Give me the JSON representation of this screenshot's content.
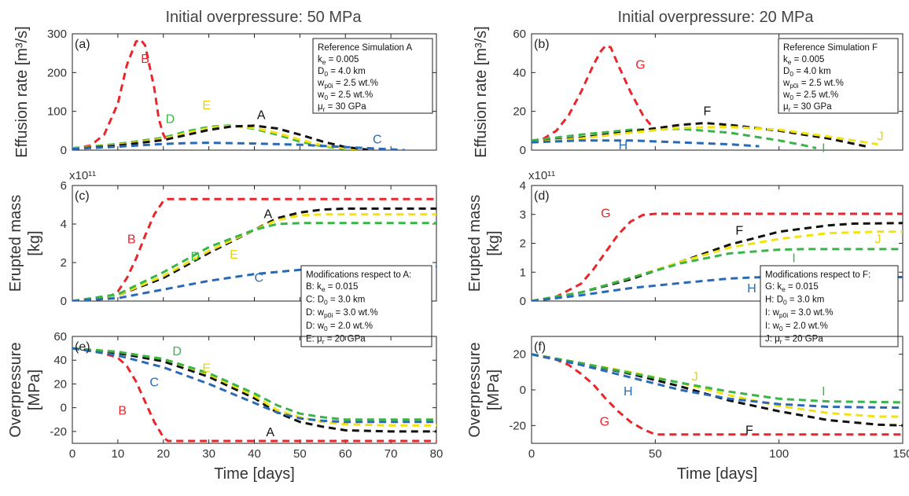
{
  "colors": {
    "A": "#111111",
    "B": "#e8262b",
    "C": "#2a6ab4",
    "D": "#38b449",
    "E": "#f2e20e",
    "F": "#111111",
    "G": "#e8262b",
    "H": "#2a6ab4",
    "I": "#38b449",
    "J": "#f2e20e"
  },
  "chart_data": [
    {
      "id": "a",
      "type": "line",
      "panel_label": "(a)",
      "column_title": "Initial overpressure: 50 MPa",
      "ylabel": "Effusion rate [m³/s]",
      "xlim": [
        0,
        80
      ],
      "ylim": [
        0,
        300
      ],
      "yticks": [
        "0",
        "100",
        "200",
        "300"
      ],
      "series": [
        {
          "name": "B",
          "x": [
            0,
            4,
            7,
            10,
            12,
            14,
            15,
            16,
            18,
            19,
            20,
            21
          ],
          "y": [
            3,
            12,
            40,
            120,
            220,
            280,
            285,
            270,
            160,
            80,
            40,
            20
          ]
        },
        {
          "name": "D",
          "x": [
            0,
            10,
            20,
            25,
            30,
            35,
            40,
            45,
            50,
            55,
            60,
            62
          ],
          "y": [
            5,
            16,
            32,
            48,
            60,
            64,
            55,
            40,
            22,
            10,
            3,
            1
          ]
        },
        {
          "name": "E",
          "x": [
            0,
            10,
            20,
            25,
            30,
            35,
            40,
            45,
            50,
            55,
            60,
            63
          ],
          "y": [
            4,
            14,
            29,
            44,
            57,
            63,
            57,
            44,
            27,
            12,
            4,
            1
          ]
        },
        {
          "name": "A",
          "x": [
            0,
            10,
            20,
            25,
            30,
            35,
            40,
            45,
            50,
            55,
            60,
            65
          ],
          "y": [
            3,
            12,
            26,
            39,
            52,
            61,
            63,
            56,
            40,
            22,
            8,
            1
          ]
        },
        {
          "name": "C",
          "x": [
            0,
            10,
            20,
            25,
            30,
            40,
            50,
            55,
            60,
            65,
            70,
            73
          ],
          "y": [
            3,
            9,
            16,
            18,
            19,
            17,
            14,
            11,
            8,
            5,
            2,
            0
          ]
        }
      ],
      "annotations": [
        {
          "text": "B",
          "x": 16,
          "y": 225
        },
        {
          "text": "D",
          "x": 21.5,
          "y": 70
        },
        {
          "text": "E",
          "x": 29.5,
          "y": 105
        },
        {
          "text": "A",
          "x": 41.5,
          "y": 80
        },
        {
          "text": "C",
          "x": 67,
          "y": 17
        }
      ],
      "legend_box": {
        "title": "Reference Simulation A",
        "lines": [
          "k_e = 0.005",
          "D_0 = 4.0 km",
          "w_p0i = 2.5 wt.%",
          "w_0 = 2.5 wt.%",
          "μ_r = 30 GPa"
        ]
      }
    },
    {
      "id": "b",
      "type": "line",
      "panel_label": "(b)",
      "column_title": "Initial overpressure: 20 MPa",
      "ylabel": "Effusion rate [m³/s]",
      "xlim": [
        0,
        150
      ],
      "ylim": [
        0,
        60
      ],
      "yticks": [
        "0",
        "20",
        "40",
        "60"
      ],
      "series": [
        {
          "name": "G",
          "x": [
            0,
            5,
            10,
            15,
            20,
            25,
            28,
            30,
            32,
            35,
            40,
            45,
            50
          ],
          "y": [
            4,
            6,
            10,
            18,
            30,
            44,
            51,
            54,
            53,
            44,
            30,
            18,
            10
          ]
        },
        {
          "name": "I",
          "x": [
            0,
            20,
            40,
            60,
            80,
            100,
            110,
            115
          ],
          "y": [
            5,
            8,
            10.5,
            11,
            9,
            5,
            2.5,
            1
          ]
        },
        {
          "name": "F",
          "x": [
            0,
            20,
            40,
            60,
            70,
            80,
            100,
            120,
            135
          ],
          "y": [
            4,
            6.5,
            9.5,
            13,
            14,
            13,
            10,
            6,
            2
          ]
        },
        {
          "name": "J",
          "x": [
            0,
            20,
            40,
            60,
            80,
            100,
            120,
            140
          ],
          "y": [
            4,
            6,
            9,
            11.5,
            12,
            10.5,
            7,
            3
          ]
        },
        {
          "name": "H",
          "x": [
            0,
            20,
            40,
            60,
            80,
            92
          ],
          "y": [
            4,
            5,
            5,
            4,
            3,
            2
          ]
        }
      ],
      "annotations": [
        {
          "text": "G",
          "x": 44,
          "y": 42
        },
        {
          "text": "F",
          "x": 71,
          "y": 18
        },
        {
          "text": "J",
          "x": 141,
          "y": 5
        },
        {
          "text": "H",
          "x": 37,
          "y": 0.5
        },
        {
          "text": "I",
          "x": 118,
          "y": -1
        }
      ],
      "legend_box": {
        "title": "Reference Simulation F",
        "lines": [
          "k_e = 0.005",
          "D_0 = 4.0 km",
          "w_p0i = 2.5 wt.%",
          "w_0 = 2.5 wt.%",
          "μ_r = 30 GPa"
        ]
      }
    },
    {
      "id": "c",
      "type": "line",
      "panel_label": "(c)",
      "ylabel": "Erupted mass [kg]",
      "yscale": "x10¹¹",
      "xlim": [
        0,
        80
      ],
      "ylim": [
        0,
        6
      ],
      "yticks": [
        "0",
        "2",
        "4",
        "6"
      ],
      "series": [
        {
          "name": "B",
          "x": [
            0,
            5,
            8,
            10,
            12,
            14,
            16,
            18,
            20,
            21,
            80
          ],
          "y": [
            0,
            0.05,
            0.2,
            0.5,
            1.2,
            2.2,
            3.4,
            4.5,
            5.2,
            5.3,
            5.3
          ]
        },
        {
          "name": "A",
          "x": [
            0,
            10,
            20,
            30,
            40,
            45,
            50,
            55,
            60,
            80
          ],
          "y": [
            0,
            0.3,
            1.2,
            2.5,
            3.7,
            4.3,
            4.6,
            4.75,
            4.8,
            4.8
          ]
        },
        {
          "name": "E",
          "x": [
            0,
            10,
            20,
            30,
            40,
            45,
            50,
            55,
            60,
            80
          ],
          "y": [
            0,
            0.3,
            1.3,
            2.6,
            3.7,
            4.2,
            4.45,
            4.5,
            4.5,
            4.5
          ]
        },
        {
          "name": "D",
          "x": [
            0,
            10,
            20,
            30,
            40,
            45,
            50,
            55,
            80
          ],
          "y": [
            0,
            0.35,
            1.5,
            2.8,
            3.7,
            4.0,
            4.05,
            4.05,
            4.05
          ]
        },
        {
          "name": "C",
          "x": [
            0,
            10,
            20,
            30,
            40,
            50,
            60,
            70,
            80
          ],
          "y": [
            0,
            0.15,
            0.6,
            1.05,
            1.4,
            1.62,
            1.72,
            1.78,
            1.8
          ]
        }
      ],
      "annotations": [
        {
          "text": "B",
          "x": 13,
          "y": 3.0
        },
        {
          "text": "A",
          "x": 43,
          "y": 4.3
        },
        {
          "text": "D",
          "x": 27,
          "y": 2.1
        },
        {
          "text": "E",
          "x": 35.5,
          "y": 2.2
        },
        {
          "text": "C",
          "x": 41,
          "y": 1.0
        }
      ],
      "legend_box": {
        "title": "Modifications respect to A:",
        "lines": [
          "B: k_e = 0.015",
          "C: D_0 = 3.0 km",
          "D: w_p0i = 3.0 wt.%",
          "D: w_0 = 2.0 wt.%",
          "E: μ_r = 20 GPa"
        ]
      }
    },
    {
      "id": "d",
      "type": "line",
      "panel_label": "(d)",
      "ylabel": "Erupted mass [kg]",
      "yscale": "x10¹¹",
      "xlim": [
        0,
        150
      ],
      "ylim": [
        0,
        4
      ],
      "yticks": [
        "0",
        "1",
        "2",
        "3",
        "4"
      ],
      "series": [
        {
          "name": "G",
          "x": [
            0,
            10,
            20,
            25,
            30,
            35,
            40,
            45,
            50,
            150
          ],
          "y": [
            0,
            0.15,
            0.6,
            1.1,
            1.7,
            2.3,
            2.75,
            2.98,
            3.02,
            3.02
          ]
        },
        {
          "name": "F",
          "x": [
            0,
            20,
            40,
            60,
            80,
            100,
            120,
            130,
            150
          ],
          "y": [
            0,
            0.3,
            0.75,
            1.35,
            1.95,
            2.4,
            2.62,
            2.68,
            2.7
          ]
        },
        {
          "name": "J",
          "x": [
            0,
            20,
            40,
            60,
            80,
            100,
            120,
            140,
            150
          ],
          "y": [
            0,
            0.3,
            0.8,
            1.35,
            1.85,
            2.15,
            2.35,
            2.4,
            2.4
          ]
        },
        {
          "name": "I",
          "x": [
            0,
            20,
            40,
            60,
            80,
            100,
            110,
            120,
            150
          ],
          "y": [
            0,
            0.3,
            0.8,
            1.3,
            1.65,
            1.78,
            1.8,
            1.8,
            1.8
          ]
        },
        {
          "name": "H",
          "x": [
            0,
            20,
            40,
            60,
            80,
            90,
            100,
            150
          ],
          "y": [
            0,
            0.2,
            0.45,
            0.62,
            0.78,
            0.82,
            0.83,
            0.83
          ]
        }
      ],
      "annotations": [
        {
          "text": "G",
          "x": 30,
          "y": 2.9
        },
        {
          "text": "F",
          "x": 84,
          "y": 2.3
        },
        {
          "text": "J",
          "x": 140,
          "y": 2.0
        },
        {
          "text": "I",
          "x": 106,
          "y": 1.35
        },
        {
          "text": "H",
          "x": 89,
          "y": 0.3
        }
      ],
      "legend_box": {
        "title": "Modifications respect to F:",
        "lines": [
          "G: k_e = 0.015",
          "H: D_0 = 3.0 km",
          "I: w_p0i = 3.0 wt.%",
          "I: w_0 = 2.0 wt.%",
          "J: μ_r = 20 GPa"
        ]
      }
    },
    {
      "id": "e",
      "type": "line",
      "panel_label": "(e)",
      "ylabel": "Overpressure [MPa]",
      "xlabel": "Time [days]",
      "xlim": [
        0,
        80
      ],
      "ylim": [
        -30,
        60
      ],
      "yticks": [
        "-20",
        "0",
        "20",
        "40",
        "60"
      ],
      "xticks": [
        "0",
        "10",
        "20",
        "30",
        "40",
        "50",
        "60",
        "70",
        "80"
      ],
      "series": [
        {
          "name": "B",
          "x": [
            0,
            5,
            10,
            12,
            14,
            16,
            18,
            20,
            21,
            80
          ],
          "y": [
            50,
            48,
            42,
            35,
            22,
            5,
            -12,
            -25,
            -28,
            -28
          ]
        },
        {
          "name": "A",
          "x": [
            0,
            10,
            20,
            30,
            40,
            45,
            50,
            55,
            60,
            70,
            80
          ],
          "y": [
            50,
            46,
            39,
            26,
            8,
            -4,
            -12,
            -16,
            -19,
            -20,
            -20
          ]
        },
        {
          "name": "E",
          "x": [
            0,
            10,
            20,
            30,
            40,
            45,
            50,
            55,
            60,
            70,
            80
          ],
          "y": [
            50,
            47,
            41,
            28,
            10,
            -2,
            -8,
            -12,
            -14,
            -15,
            -15
          ]
        },
        {
          "name": "D",
          "x": [
            0,
            10,
            20,
            30,
            40,
            45,
            50,
            55,
            60,
            70,
            80
          ],
          "y": [
            50,
            47,
            41,
            29,
            12,
            2,
            -5,
            -8,
            -10,
            -10,
            -10
          ]
        },
        {
          "name": "C",
          "x": [
            0,
            10,
            20,
            30,
            40,
            45,
            50,
            55,
            60,
            70,
            80
          ],
          "y": [
            50,
            44,
            34,
            20,
            4,
            -4,
            -9,
            -11,
            -12,
            -12,
            -12
          ]
        }
      ],
      "annotations": [
        {
          "text": "D",
          "x": 23,
          "y": 44
        },
        {
          "text": "E",
          "x": 29.5,
          "y": 30
        },
        {
          "text": "C",
          "x": 18,
          "y": 18
        },
        {
          "text": "B",
          "x": 11,
          "y": -6
        },
        {
          "text": "A",
          "x": 43.5,
          "y": -24
        }
      ]
    },
    {
      "id": "f",
      "type": "line",
      "panel_label": "(f)",
      "ylabel": "Overpressure [MPa]",
      "xlabel": "Time [days]",
      "xlim": [
        0,
        150
      ],
      "ylim": [
        -30,
        30
      ],
      "yticks": [
        "-20",
        "0",
        "20"
      ],
      "xticks": [
        "0",
        "50",
        "100",
        "150"
      ],
      "series": [
        {
          "name": "G",
          "x": [
            0,
            10,
            15,
            20,
            25,
            30,
            35,
            40,
            45,
            50,
            150
          ],
          "y": [
            20,
            17,
            14,
            9,
            3,
            -5,
            -12,
            -18,
            -22,
            -25,
            -25
          ]
        },
        {
          "name": "F",
          "x": [
            0,
            20,
            40,
            60,
            80,
            100,
            120,
            140,
            150
          ],
          "y": [
            20,
            15,
            9,
            2,
            -6,
            -12,
            -17,
            -19.5,
            -20
          ]
        },
        {
          "name": "J",
          "x": [
            0,
            20,
            40,
            60,
            80,
            100,
            120,
            140,
            150
          ],
          "y": [
            20,
            15,
            10,
            4,
            -3,
            -9,
            -13,
            -15,
            -15
          ]
        },
        {
          "name": "I",
          "x": [
            0,
            20,
            40,
            60,
            80,
            100,
            120,
            150
          ],
          "y": [
            20,
            15,
            9.5,
            4,
            -1,
            -5,
            -6.5,
            -7
          ]
        },
        {
          "name": "H",
          "x": [
            0,
            20,
            40,
            60,
            80,
            100,
            120,
            150
          ],
          "y": [
            20,
            14,
            7,
            0,
            -5,
            -8,
            -9.5,
            -10
          ]
        }
      ],
      "annotations": [
        {
          "text": "J",
          "x": 66,
          "y": 5
        },
        {
          "text": "H",
          "x": 39,
          "y": -3
        },
        {
          "text": "I",
          "x": 118,
          "y": -3
        },
        {
          "text": "G",
          "x": 29.5,
          "y": -20
        },
        {
          "text": "F",
          "x": 88,
          "y": -25
        }
      ]
    }
  ]
}
